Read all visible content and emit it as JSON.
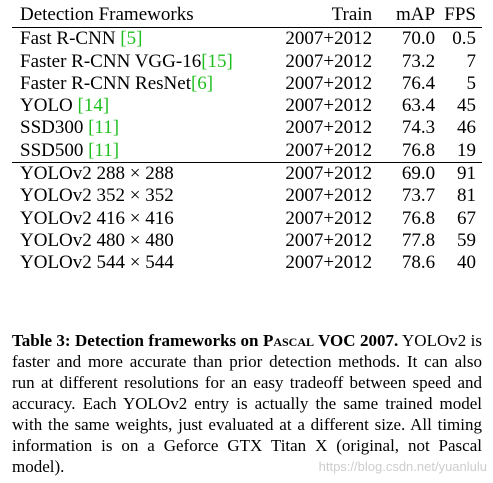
{
  "table": {
    "headers": {
      "framework": "Detection Frameworks",
      "train": "Train",
      "map": "mAP",
      "fps": "FPS"
    },
    "group1": [
      {
        "name": "Fast R-CNN ",
        "ref": "[5]",
        "train": "2007+2012",
        "map": "70.0",
        "fps": "0.5"
      },
      {
        "name": "Faster R-CNN VGG-16",
        "ref": "[15]",
        "train": "2007+2012",
        "map": "73.2",
        "fps": "7"
      },
      {
        "name": "Faster R-CNN ResNet",
        "ref": "[6]",
        "train": "2007+2012",
        "map": "76.4",
        "fps": "5"
      },
      {
        "name": "YOLO ",
        "ref": "[14]",
        "train": "2007+2012",
        "map": "63.4",
        "fps": "45"
      },
      {
        "name": "SSD300 ",
        "ref": "[11]",
        "train": "2007+2012",
        "map": "74.3",
        "fps": "46"
      },
      {
        "name": "SSD500 ",
        "ref": "[11]",
        "train": "2007+2012",
        "map": "76.8",
        "fps": "19"
      }
    ],
    "group2": [
      {
        "name": "YOLOv2 288 × 288",
        "train": "2007+2012",
        "map": "69.0",
        "fps": "91"
      },
      {
        "name": "YOLOv2 352 × 352",
        "train": "2007+2012",
        "map": "73.7",
        "fps": "81"
      },
      {
        "name": "YOLOv2 416 × 416",
        "train": "2007+2012",
        "map": "76.8",
        "fps": "67"
      },
      {
        "name": "YOLOv2 480 × 480",
        "train": "2007+2012",
        "map": "77.8",
        "fps": "59"
      },
      {
        "name": "YOLOv2 544 × 544",
        "train": "2007+2012",
        "map": "78.6",
        "fps": "40",
        "map_bold": true
      }
    ]
  },
  "caption": {
    "title_prefix": "Table 3:  Detection frameworks on ",
    "title_smallcaps": "Pascal",
    "title_suffix": " VOC 2007.",
    "body": "YOLOv2 is faster and more accurate than prior detection methods. It can also run at different resolutions for an easy tradeoff between speed and accuracy. Each YOLOv2 entry is actually the same trained model with the same weights, just evaluated at a different size. All timing information is on a Geforce GTX Titan X (original, not Pascal model)."
  },
  "watermark": "https://blog.csdn.net/yuanlulu"
}
